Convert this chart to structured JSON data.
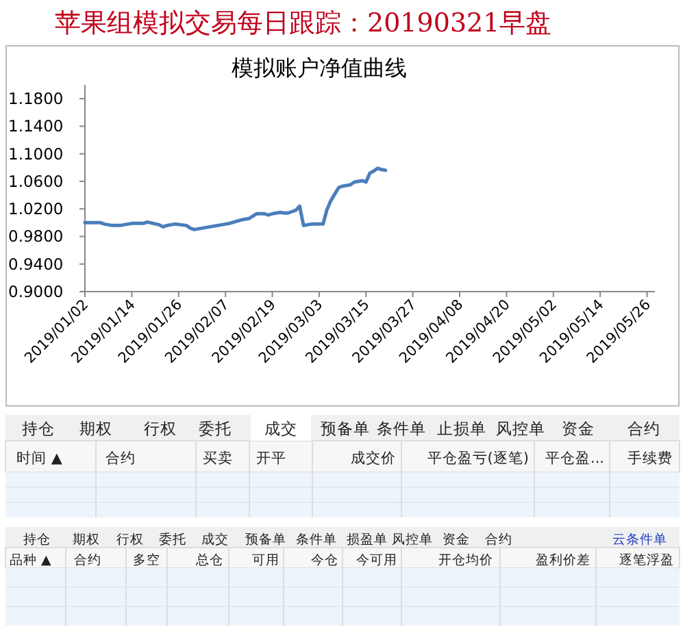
{
  "chart_data": {
    "type": "line",
    "title": "模拟账户净值曲线",
    "x": [
      "2019-01-02",
      "2019-01-06",
      "2019-01-07",
      "2019-01-09",
      "2019-01-11",
      "2019-01-14",
      "2019-01-17",
      "2019-01-18",
      "2019-01-21",
      "2019-01-22",
      "2019-01-23",
      "2019-01-25",
      "2019-01-28",
      "2019-01-29",
      "2019-01-30",
      "2019-02-01",
      "2019-02-04",
      "2019-02-08",
      "2019-02-11",
      "2019-02-13",
      "2019-02-15",
      "2019-02-17",
      "2019-02-18",
      "2019-02-19",
      "2019-02-21",
      "2019-02-22",
      "2019-02-23",
      "2019-02-25",
      "2019-02-26",
      "2019-02-27",
      "2019-03-01",
      "2019-03-04",
      "2019-03-05",
      "2019-03-06",
      "2019-03-08",
      "2019-03-09",
      "2019-03-11",
      "2019-03-12",
      "2019-03-14",
      "2019-03-15",
      "2019-03-16",
      "2019-03-17",
      "2019-03-18",
      "2019-03-19",
      "2019-03-20"
    ],
    "series": [
      {
        "color": "#4a7ebb",
        "values": [
          1.0,
          1.0,
          0.998,
          0.996,
          0.996,
          0.999,
          0.999,
          1.001,
          0.997,
          0.994,
          0.996,
          0.998,
          0.996,
          0.992,
          0.99,
          0.992,
          0.995,
          0.999,
          1.004,
          1.006,
          1.013,
          1.013,
          1.011,
          1.013,
          1.015,
          1.014,
          1.014,
          1.018,
          1.024,
          0.996,
          0.998,
          0.998,
          1.019,
          1.032,
          1.051,
          1.053,
          1.055,
          1.059,
          1.061,
          1.059,
          1.072,
          1.075,
          1.079,
          1.077,
          1.076
        ]
      }
    ],
    "xlim": [
      "2019-01-02",
      "2019-05-28"
    ],
    "xticks": [
      {
        "value": "2019-01-02",
        "label": "2019/01/02"
      },
      {
        "value": "2019-01-14",
        "label": "2019/01/14"
      },
      {
        "value": "2019-01-26",
        "label": "2019/01/26"
      },
      {
        "value": "2019-02-07",
        "label": "2019/02/07"
      },
      {
        "value": "2019-02-19",
        "label": "2019/02/19"
      },
      {
        "value": "2019-03-03",
        "label": "2019/03/03"
      },
      {
        "value": "2019-03-15",
        "label": "2019/03/15"
      },
      {
        "value": "2019-03-27",
        "label": "2019/03/27"
      },
      {
        "value": "2019-04-08",
        "label": "2019/04/08"
      },
      {
        "value": "2019-04-20",
        "label": "2019/04/20"
      },
      {
        "value": "2019-05-02",
        "label": "2019/05/02"
      },
      {
        "value": "2019-05-14",
        "label": "2019/05/14"
      },
      {
        "value": "2019-05-26",
        "label": "2019/05/26"
      }
    ],
    "ylim": [
      0.9,
      1.2
    ],
    "yticks": [
      {
        "value": 0.9,
        "label": "0.9000"
      },
      {
        "value": 0.94,
        "label": "0.9400"
      },
      {
        "value": 0.98,
        "label": "0.9800"
      },
      {
        "value": 1.02,
        "label": "1.0200"
      },
      {
        "value": 1.06,
        "label": "1.0600"
      },
      {
        "value": 1.1,
        "label": "1.1000"
      },
      {
        "value": 1.14,
        "label": "1.1400"
      },
      {
        "value": 1.18,
        "label": "1.1800"
      }
    ],
    "line_style": "solid",
    "annotations": [
      "苹果组模拟交易每日跟踪：20190321早盘",
      "持仓",
      "期权",
      "行权",
      "委托",
      "成交",
      "预备单",
      "条件单",
      "止损单",
      "风控单",
      "资金",
      "合约",
      "时间 ▲",
      "合约",
      "买卖",
      "开平",
      "成交价",
      "平仓盈亏(逐笔)",
      "平仓盈...",
      "手续费",
      "持仓",
      "期权",
      "行权",
      "委托",
      "成交",
      "预备单",
      "条件单",
      "损盈单",
      "风控单",
      "资金",
      "合约",
      "云条件单",
      "品种 ▲",
      "合约",
      "多空",
      "总仓",
      "可用",
      "今仓",
      "今可用",
      "开仓均价",
      "盈利价差",
      "逐笔浮盈"
    ]
  }
}
